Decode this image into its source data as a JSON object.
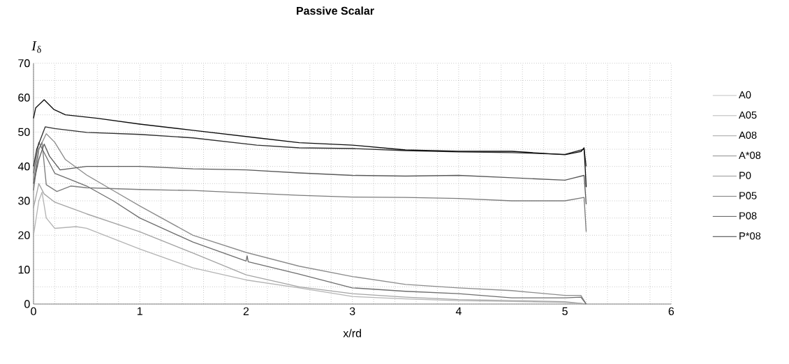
{
  "chart_data": {
    "type": "line",
    "title": "**Passive Scalar**",
    "xlabel": "x/rd",
    "ylabel": "*I*$_{δ}$",
    "xlim": [
      0,
      6
    ],
    "ylim": [
      0,
      70
    ],
    "xticks": [
      0,
      {
        "value": 0.2,
        "label": null
      },
      {
        "value": 0.4,
        "label": null
      },
      {
        "value": 0.6,
        "label": null
      },
      {
        "value": 0.8,
        "label": null
      },
      1,
      {
        "value": 1.2,
        "label": null
      },
      {
        "value": 1.4,
        "label": null
      },
      {
        "value": 1.6,
        "label": null
      },
      {
        "value": 1.8,
        "label": null
      },
      2,
      {
        "value": 2.2,
        "label": null
      },
      {
        "value": 2.4,
        "label": null
      },
      {
        "value": 2.6,
        "label": null
      },
      {
        "value": 2.8,
        "label": null
      },
      3,
      {
        "value": 3.2,
        "label": null
      },
      {
        "value": 3.4,
        "label": null
      },
      {
        "value": 3.6,
        "label": null
      },
      {
        "value": 3.8,
        "label": null
      },
      4,
      {
        "value": 4.2,
        "label": null
      },
      {
        "value": 4.4,
        "label": null
      },
      {
        "value": 4.6,
        "label": null
      },
      {
        "value": 4.8,
        "label": null
      },
      5,
      {
        "value": 5.2,
        "label": null
      },
      {
        "value": 5.4,
        "label": null
      },
      {
        "value": 5.6,
        "label": null
      },
      {
        "value": 5.8,
        "label": null
      },
      6
    ],
    "yticks": [
      0,
      {
        "value": 5,
        "label": null
      },
      10,
      {
        "value": 15,
        "label": null
      },
      20,
      {
        "value": 25,
        "label": null
      },
      30,
      {
        "value": 35,
        "label": null
      },
      40,
      {
        "value": 45,
        "label": null
      },
      50,
      {
        "value": 55,
        "label": null
      },
      60,
      {
        "value": 65,
        "label": null
      },
      70
    ],
    "grid": true,
    "legend": "right",
    "line_style": "solid",
    "marker": "none",
    "series": [
      {
        "name": "A0",
        "color": "#b4b4b4",
        "x": [
          0,
          0.05,
          0.08,
          0.12,
          0.2,
          0.4,
          0.5,
          1,
          1.5,
          2,
          2.5,
          3,
          3.5,
          4,
          5,
          5.2
        ],
        "values": [
          20,
          30,
          32.5,
          25,
          22,
          22.5,
          22,
          16,
          10.5,
          7,
          4.7,
          2.2,
          1.5,
          1,
          0.5,
          0
        ]
      },
      {
        "name": "A05",
        "color": "#a4a4a4",
        "x": [
          0,
          0.05,
          0.1,
          0.2,
          0.5,
          1,
          1.5,
          2,
          2.5,
          3,
          3.5,
          4,
          5,
          5.2
        ],
        "values": [
          28,
          35,
          32,
          29.6,
          26.2,
          21,
          14.8,
          8.5,
          5,
          3,
          2,
          1.3,
          0.7,
          0
        ]
      },
      {
        "name": "A08",
        "color": "#8c8c8c",
        "x": [
          0,
          0.05,
          0.12,
          0.2,
          0.3,
          0.5,
          0.75,
          1,
          1.5,
          2,
          2.5,
          3,
          3.5,
          4,
          4.5,
          5,
          5.15,
          5.2
        ],
        "values": [
          36,
          45,
          49.5,
          47,
          42,
          37.5,
          33,
          28.5,
          20,
          15,
          11,
          8,
          5.7,
          4.7,
          3.9,
          2.5,
          2.5,
          0
        ]
      },
      {
        "name": "A*08",
        "color": "#6e6e6e",
        "x": [
          0,
          0.05,
          0.1,
          0.2,
          0.5,
          0.75,
          1,
          1.5,
          2,
          2.01,
          2.02,
          2.5,
          3,
          3.5,
          4,
          4.5,
          5,
          5.15,
          5.2
        ],
        "values": [
          38,
          47,
          44,
          38,
          34.3,
          30,
          25,
          18,
          12.5,
          14,
          12.3,
          8.7,
          4.7,
          3.7,
          3,
          1.8,
          1.8,
          2,
          0
        ]
      },
      {
        "name": "P0",
        "color": "#7c7c7c",
        "x": [
          0,
          0.05,
          0.08,
          0.12,
          0.22,
          0.35,
          0.5,
          1,
          1.5,
          2,
          2.5,
          3,
          3.5,
          4,
          4.5,
          5,
          5.18,
          5.2
        ],
        "values": [
          33,
          45,
          47,
          34.7,
          32.7,
          34.3,
          33.8,
          33.3,
          33,
          32.3,
          31.6,
          31.1,
          31,
          30.7,
          30,
          30,
          31,
          21
        ]
      },
      {
        "name": "P05",
        "color": "#5a5a5a",
        "x": [
          0,
          0.05,
          0.1,
          0.15,
          0.25,
          0.5,
          1,
          1.5,
          2,
          2.5,
          3,
          3.5,
          4,
          4.5,
          5,
          5.18,
          5.2
        ],
        "values": [
          35,
          42,
          46.5,
          43,
          39,
          40,
          40,
          39.3,
          39,
          38.1,
          37.4,
          37.2,
          37.4,
          36.7,
          36,
          37.4,
          29
        ]
      },
      {
        "name": "P08",
        "color": "#2e2e2e",
        "x": [
          0,
          0.03,
          0.11,
          0.2,
          0.5,
          1,
          1.5,
          2.1,
          2.5,
          3,
          3.5,
          4,
          4.5,
          5,
          5.18,
          5.2
        ],
        "values": [
          40,
          45,
          51.5,
          51,
          49.9,
          49.3,
          48.3,
          46.2,
          45.4,
          45.2,
          44.6,
          44.2,
          44,
          43.5,
          45,
          40
        ]
      },
      {
        "name": "P*08",
        "color": "#0c0c0c",
        "x": [
          0,
          0.02,
          0.1,
          0.19,
          0.3,
          0.6,
          1,
          1.5,
          2.11,
          2.5,
          3,
          3.5,
          4,
          4.5,
          5,
          5.15,
          5.18,
          5.2
        ],
        "values": [
          54,
          57,
          59.4,
          56.6,
          55,
          54,
          52.3,
          50.5,
          48.3,
          46.9,
          46.2,
          44.8,
          44.4,
          44.4,
          43.4,
          44.3,
          45.4,
          34
        ]
      }
    ]
  }
}
